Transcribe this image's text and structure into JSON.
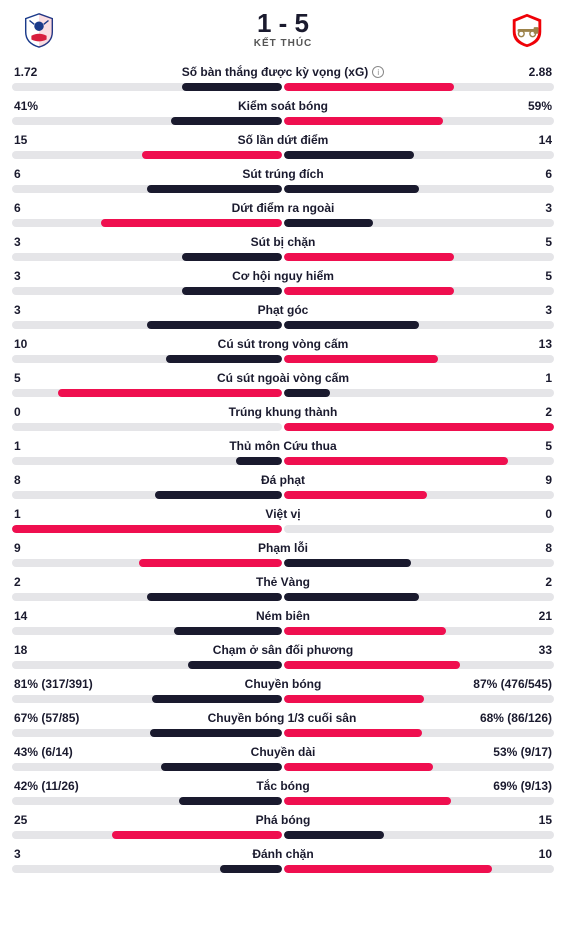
{
  "colors": {
    "home_bar": "#1a1a2e",
    "away_bar": "#ef0f4f",
    "track": "#e5e5e8",
    "text": "#1a1a2e"
  },
  "header": {
    "score": "1 - 5",
    "status": "KẾT THÚC",
    "home_crest": {
      "primary": "#1a3a8a",
      "accent": "#d81e3e",
      "type": "eagle-shield"
    },
    "away_crest": {
      "primary": "#ef0107",
      "accent": "#ffffff",
      "type": "cannon-shield"
    }
  },
  "stats": [
    {
      "name": "Số bàn thắng được kỳ vọng (xG)",
      "info_icon": true,
      "left_label": "1.72",
      "right_label": "2.88",
      "left_pct": 37,
      "right_pct": 63
    },
    {
      "name": "Kiểm soát bóng",
      "left_label": "41%",
      "right_label": "59%",
      "left_pct": 41,
      "right_pct": 59
    },
    {
      "name": "Số lần dứt điểm",
      "left_label": "15",
      "right_label": "14",
      "left_pct": 52,
      "right_pct": 48,
      "home_wins": true
    },
    {
      "name": "Sút trúng đích",
      "left_label": "6",
      "right_label": "6",
      "left_pct": 50,
      "right_pct": 50
    },
    {
      "name": "Dứt điểm ra ngoài",
      "left_label": "6",
      "right_label": "3",
      "left_pct": 67,
      "right_pct": 33,
      "home_wins": true
    },
    {
      "name": "Sút bị chặn",
      "left_label": "3",
      "right_label": "5",
      "left_pct": 37,
      "right_pct": 63
    },
    {
      "name": "Cơ hội nguy hiểm",
      "left_label": "3",
      "right_label": "5",
      "left_pct": 37,
      "right_pct": 63
    },
    {
      "name": "Phạt góc",
      "left_label": "3",
      "right_label": "3",
      "left_pct": 50,
      "right_pct": 50
    },
    {
      "name": "Cú sút trong vòng cấm",
      "left_label": "10",
      "right_label": "13",
      "left_pct": 43,
      "right_pct": 57
    },
    {
      "name": "Cú sút ngoài vòng cấm",
      "left_label": "5",
      "right_label": "1",
      "left_pct": 83,
      "right_pct": 17,
      "home_wins": true
    },
    {
      "name": "Trúng khung thành",
      "left_label": "0",
      "right_label": "2",
      "left_pct": 0,
      "right_pct": 100
    },
    {
      "name": "Thủ môn Cứu thua",
      "left_label": "1",
      "right_label": "5",
      "left_pct": 17,
      "right_pct": 83
    },
    {
      "name": "Đá phạt",
      "left_label": "8",
      "right_label": "9",
      "left_pct": 47,
      "right_pct": 53
    },
    {
      "name": "Việt vị",
      "left_label": "1",
      "right_label": "0",
      "left_pct": 100,
      "right_pct": 0,
      "home_wins": true
    },
    {
      "name": "Phạm lỗi",
      "left_label": "9",
      "right_label": "8",
      "left_pct": 53,
      "right_pct": 47,
      "home_wins": true
    },
    {
      "name": "Thẻ Vàng",
      "left_label": "2",
      "right_label": "2",
      "left_pct": 50,
      "right_pct": 50
    },
    {
      "name": "Ném biên",
      "left_label": "14",
      "right_label": "21",
      "left_pct": 40,
      "right_pct": 60
    },
    {
      "name": "Chạm ở sân đối phương",
      "left_label": "18",
      "right_label": "33",
      "left_pct": 35,
      "right_pct": 65
    },
    {
      "name": "Chuyền bóng",
      "left_label": "81% (317/391)",
      "right_label": "87% (476/545)",
      "left_pct": 48,
      "right_pct": 52
    },
    {
      "name": "Chuyền bóng 1/3 cuối sân",
      "left_label": "67% (57/85)",
      "right_label": "68% (86/126)",
      "left_pct": 49,
      "right_pct": 51
    },
    {
      "name": "Chuyền dài",
      "left_label": "43% (6/14)",
      "right_label": "53% (9/17)",
      "left_pct": 45,
      "right_pct": 55
    },
    {
      "name": "Tắc bóng",
      "left_label": "42% (11/26)",
      "right_label": "69% (9/13)",
      "left_pct": 38,
      "right_pct": 62
    },
    {
      "name": "Phá bóng",
      "left_label": "25",
      "right_label": "15",
      "left_pct": 63,
      "right_pct": 37,
      "home_wins": true
    },
    {
      "name": "Đánh chặn",
      "left_label": "3",
      "right_label": "10",
      "left_pct": 23,
      "right_pct": 77
    }
  ]
}
